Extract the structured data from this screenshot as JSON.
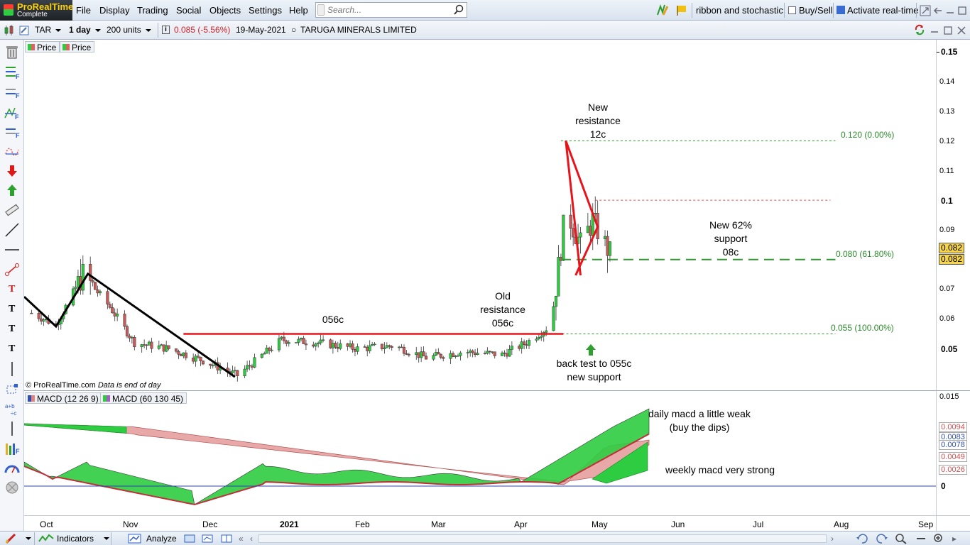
{
  "app": {
    "name": "ProRealTime",
    "edition": "Complete"
  },
  "menu": [
    "File",
    "Display",
    "Trading",
    "Social",
    "Objects",
    "Settings",
    "Help"
  ],
  "search": {
    "placeholder": "Search..."
  },
  "toolbar": {
    "layout_name": "ribbon and stochastic",
    "buysell_label": "Buy/Sell",
    "realtime_label": "Activate real-time"
  },
  "instrument": {
    "ticker": "TAR",
    "timeframe": "1 day",
    "units": "200 units",
    "last_price_change": "0.085 (-5.56%)",
    "date": "19-May-2021",
    "name": "TARUGA MINERALS LIMITED"
  },
  "legend": {
    "price_1": "Price",
    "price_2": "Price",
    "macd_1": "MACD (12 26 9)",
    "macd_2": "MACD (60 130 45)"
  },
  "price_axis": {
    "labels": [
      "0.15",
      "0.14",
      "0.13",
      "0.12",
      "0.11",
      "0.1",
      "0.09",
      "0.07",
      "0.06",
      "0.05"
    ],
    "current_1": "0.082",
    "current_2": "0.082"
  },
  "macd_axis": {
    "labels": [
      "0.015",
      "0"
    ],
    "boxes": [
      "0.0094",
      "0.0083",
      "0.0078",
      "0.0049",
      "0.0026"
    ],
    "box_colors": [
      "#e07070",
      "#4060c0",
      "#4060c0",
      "#e07070",
      "#e07070"
    ]
  },
  "x_axis": [
    "Oct",
    "Nov",
    "Dec",
    "2021",
    "Feb",
    "Mar",
    "Apr",
    "May",
    "Jun",
    "Jul",
    "Aug",
    "Sep"
  ],
  "annotations": {
    "new_resistance": [
      "New",
      "resistance",
      "12c"
    ],
    "new_62": [
      "New 62%",
      "support",
      "08c"
    ],
    "old_resistance": [
      "Old",
      "resistance",
      "056c"
    ],
    "c056": "056c",
    "back_test": [
      "back test to 055c",
      "new support"
    ],
    "daily_macd": [
      "daily macd a little weak",
      "(buy the dips)"
    ],
    "weekly_macd": "weekly macd very strong"
  },
  "fib_levels": [
    "0.120 (0.00%)",
    "0.080 (61.80%)",
    "0.055 (100.00%)"
  ],
  "copyright": "© ProRealTime.com",
  "eod": "Data is end of day",
  "bottom": {
    "indicators": "Indicators",
    "analyze": "Analyze"
  },
  "colors": {
    "up": "#2ecc40",
    "down": "#c85a5a",
    "trend_red": "#e8141c",
    "fib": "#2e9a2e"
  },
  "chart_data": {
    "type": "candlestick",
    "title": "",
    "xlabel": "",
    "ylabel": "",
    "x_range": [
      "2020-09-22",
      "2021-09-29"
    ],
    "ylim": [
      0.036,
      0.154
    ],
    "approx_closes": [
      [
        "2020-09-25",
        0.062
      ],
      [
        "2020-10-05",
        0.058
      ],
      [
        "2020-10-16",
        0.075
      ],
      [
        "2020-10-27",
        0.064
      ],
      [
        "2020-11-06",
        0.052
      ],
      [
        "2020-11-20",
        0.05
      ],
      [
        "2020-12-04",
        0.046
      ],
      [
        "2020-12-18",
        0.041
      ],
      [
        "2021-01-05",
        0.053
      ],
      [
        "2021-01-20",
        0.052
      ],
      [
        "2021-02-05",
        0.05
      ],
      [
        "2021-02-20",
        0.051
      ],
      [
        "2021-03-05",
        0.047
      ],
      [
        "2021-03-20",
        0.049
      ],
      [
        "2021-04-05",
        0.048
      ],
      [
        "2021-04-15",
        0.052
      ],
      [
        "2021-04-25",
        0.058
      ],
      [
        "2021-05-01",
        0.097
      ],
      [
        "2021-05-07",
        0.085
      ],
      [
        "2021-05-12",
        0.093
      ],
      [
        "2021-05-19",
        0.082
      ]
    ],
    "lines": [
      {
        "kind": "resistance",
        "y": 0.055,
        "x_from": "2020-11-26",
        "x_to": "2021-04-30"
      },
      {
        "kind": "fib_0",
        "y": 0.12
      },
      {
        "kind": "fib_61.8",
        "y": 0.08
      },
      {
        "kind": "fib_100",
        "y": 0.055
      },
      {
        "kind": "dotted_red",
        "y": 0.1
      }
    ]
  }
}
